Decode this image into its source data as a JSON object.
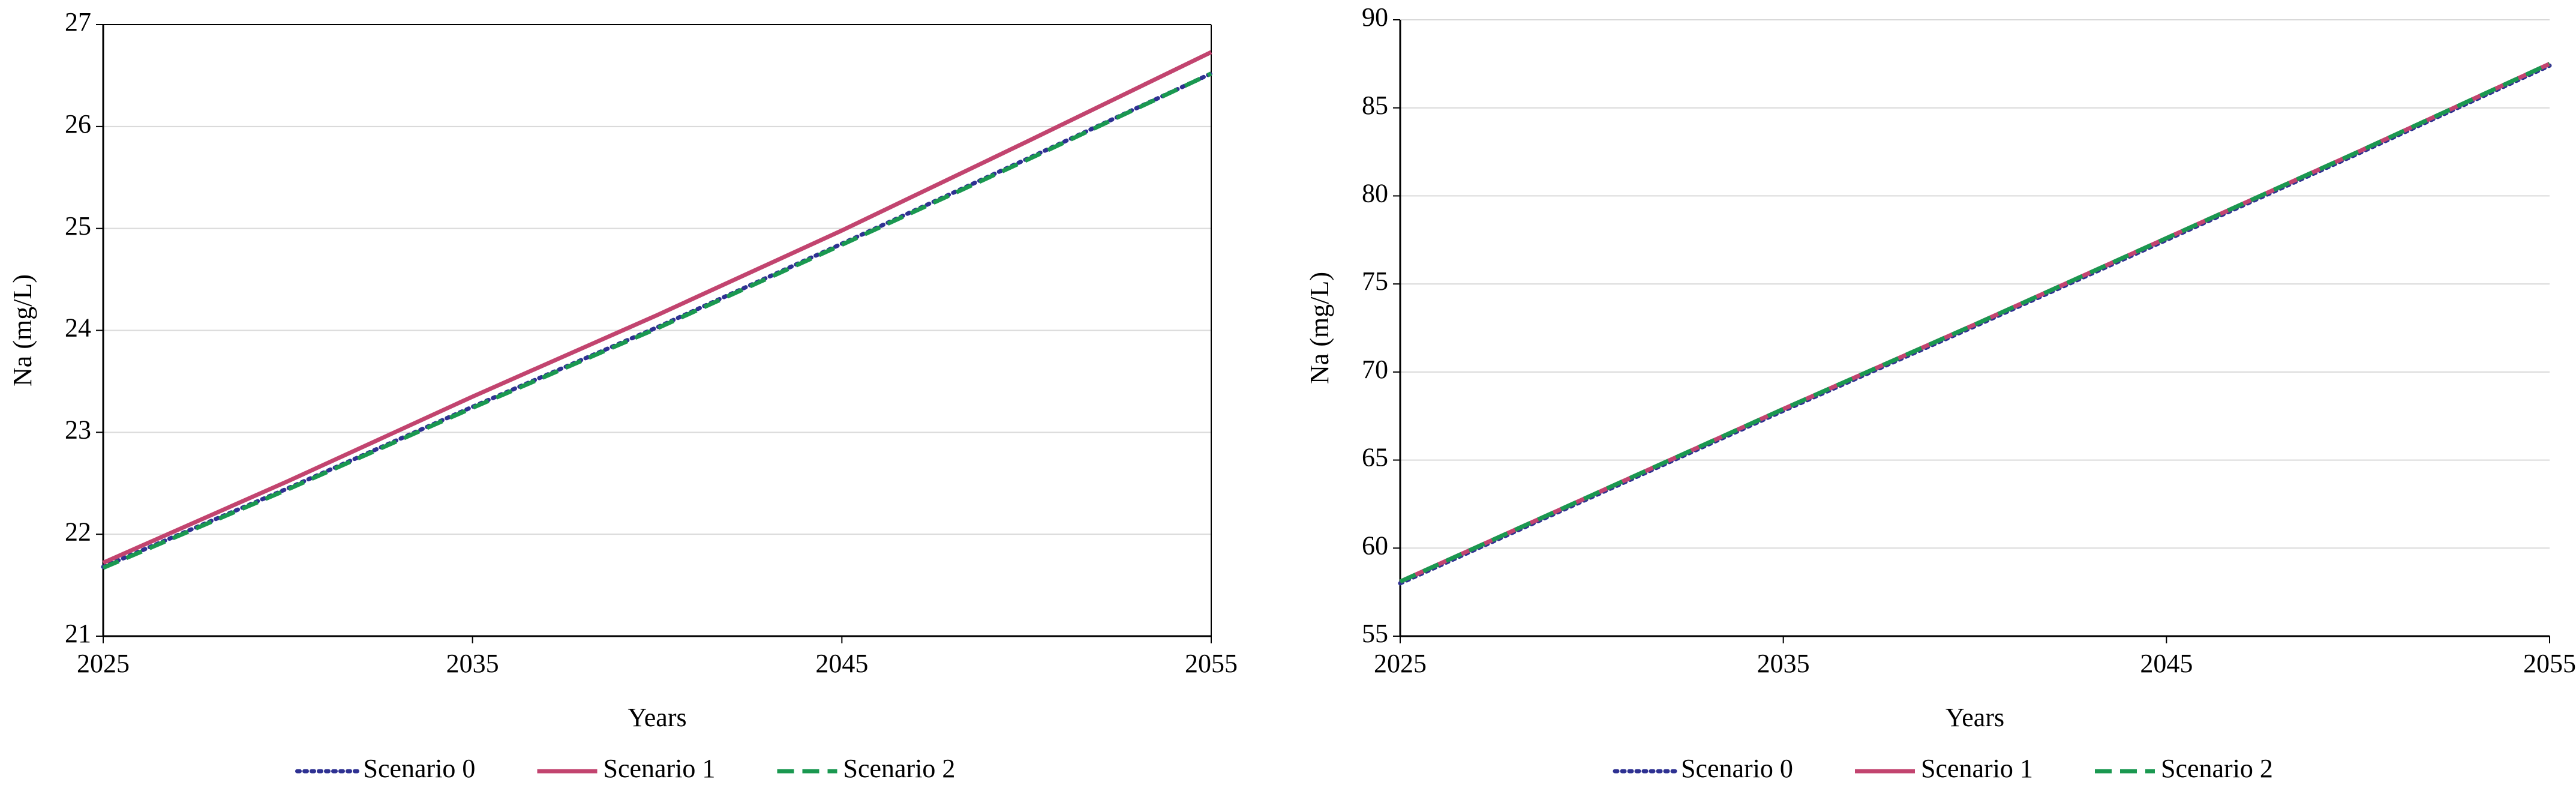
{
  "chart_data": [
    {
      "type": "line",
      "x_label": "Years",
      "y_label": "Na (mg/L)",
      "x": [
        2025,
        2030,
        2035,
        2040,
        2045,
        2050,
        2055
      ],
      "xlim": [
        2025,
        2055
      ],
      "xticks": [
        2025,
        2035,
        2045,
        2055
      ],
      "ylim": [
        21,
        27
      ],
      "yticks": [
        21,
        22,
        23,
        24,
        25,
        26,
        27
      ],
      "grid": true,
      "frame": true,
      "series": [
        {
          "name": "Scenario 0",
          "color": "#2e3192",
          "style": "dotted",
          "values": [
            21.68,
            22.45,
            23.25,
            24.03,
            24.85,
            25.68,
            26.52
          ]
        },
        {
          "name": "Scenario 1",
          "color": "#c2446f",
          "style": "solid",
          "values": [
            21.72,
            22.52,
            23.35,
            24.15,
            24.98,
            25.85,
            26.73
          ]
        },
        {
          "name": "Scenario 2",
          "color": "#1a9850",
          "style": "dashed",
          "values": [
            21.67,
            22.44,
            23.24,
            24.02,
            24.84,
            25.67,
            26.52
          ]
        }
      ]
    },
    {
      "type": "line",
      "x_label": "Years",
      "y_label": "Na (mg/L)",
      "x": [
        2025,
        2030,
        2035,
        2040,
        2045,
        2050,
        2055
      ],
      "xlim": [
        2025,
        2055
      ],
      "xticks": [
        2025,
        2035,
        2045,
        2055
      ],
      "ylim": [
        55,
        90
      ],
      "yticks": [
        55,
        60,
        65,
        70,
        75,
        80,
        85,
        90
      ],
      "grid": true,
      "frame": false,
      "series": [
        {
          "name": "Scenario 0",
          "color": "#2e3192",
          "style": "dotted",
          "values": [
            58.0,
            62.9,
            67.8,
            72.6,
            77.5,
            82.4,
            87.4
          ]
        },
        {
          "name": "Scenario 1",
          "color": "#c2446f",
          "style": "solid",
          "values": [
            58.1,
            63.0,
            67.9,
            72.7,
            77.6,
            82.5,
            87.5
          ]
        },
        {
          "name": "Scenario 2",
          "color": "#1a9850",
          "style": "dashed",
          "values": [
            58.1,
            63.0,
            67.9,
            72.7,
            77.6,
            82.5,
            87.5
          ]
        }
      ]
    }
  ]
}
